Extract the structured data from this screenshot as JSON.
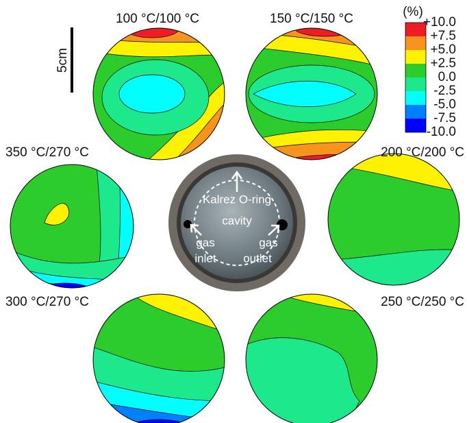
{
  "scale_bar": "5cm",
  "panels": [
    {
      "label": "100 °C/100 °C"
    },
    {
      "label": "150 °C/150 °C"
    },
    {
      "label": "350 °C/270 °C"
    },
    {
      "label": "200 °C/200 °C"
    },
    {
      "label": "300 °C/270 °C"
    },
    {
      "label": "250 °C/250 °C"
    }
  ],
  "colorbar": {
    "unit": "(%)",
    "labels": [
      "+10.0",
      "+7.5",
      "+5.0",
      "+2.5",
      "0.0",
      "-2.5",
      "-5.0",
      "-7.5",
      "-10.0"
    ],
    "colors": [
      "#ee1c24",
      "#f7941d",
      "#fff200",
      "#2dcc2d",
      "#1ee88c",
      "#00ffff",
      "#0080ff",
      "#0000ff"
    ]
  },
  "photo": {
    "labels": [
      "Kalrez O-ring",
      "cavity",
      "gas",
      "inlet",
      "gas",
      "outlet"
    ]
  }
}
